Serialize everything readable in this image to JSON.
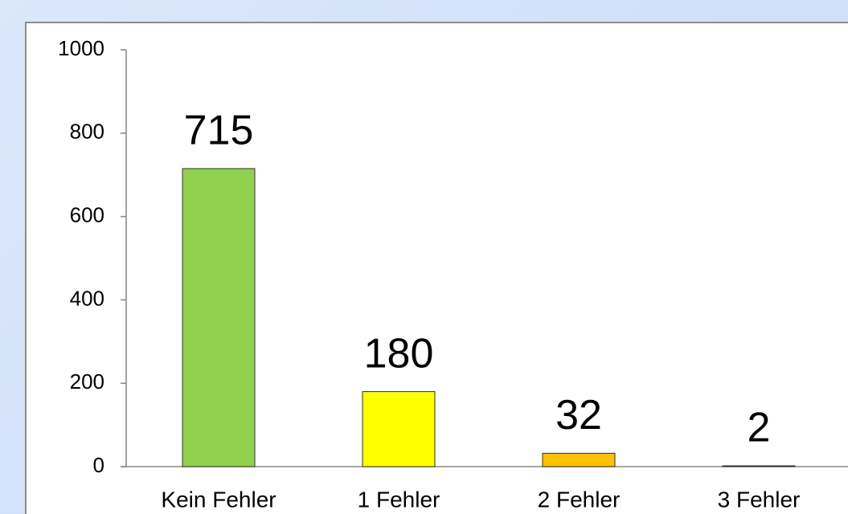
{
  "chart_data": {
    "type": "bar",
    "categories": [
      "Kein Fehler",
      "1 Fehler",
      "2 Fehler",
      "3 Fehler"
    ],
    "values": [
      715,
      180,
      32,
      2
    ],
    "colors": [
      "#92d050",
      "#ffff00",
      "#ffc000",
      "#4f81bd"
    ],
    "ylim": [
      0,
      1000
    ],
    "yticks": [
      0,
      200,
      400,
      600,
      800,
      1000
    ],
    "grid": false
  }
}
